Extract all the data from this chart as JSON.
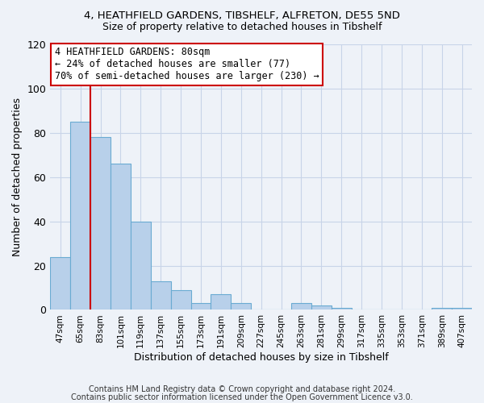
{
  "title1": "4, HEATHFIELD GARDENS, TIBSHELF, ALFRETON, DE55 5ND",
  "title2": "Size of property relative to detached houses in Tibshelf",
  "xlabel": "Distribution of detached houses by size in Tibshelf",
  "ylabel": "Number of detached properties",
  "categories": [
    "47sqm",
    "65sqm",
    "83sqm",
    "101sqm",
    "119sqm",
    "137sqm",
    "155sqm",
    "173sqm",
    "191sqm",
    "209sqm",
    "227sqm",
    "245sqm",
    "263sqm",
    "281sqm",
    "299sqm",
    "317sqm",
    "335sqm",
    "353sqm",
    "371sqm",
    "389sqm",
    "407sqm"
  ],
  "values": [
    24,
    85,
    78,
    66,
    40,
    13,
    9,
    3,
    7,
    3,
    0,
    0,
    3,
    2,
    1,
    0,
    0,
    0,
    0,
    1,
    1
  ],
  "bar_color": "#b8d0ea",
  "bar_edge_color": "#6aabd2",
  "vline_x": 1.5,
  "marker_label": "4 HEATHFIELD GARDENS: 80sqm",
  "annotation_line1": "← 24% of detached houses are smaller (77)",
  "annotation_line2": "70% of semi-detached houses are larger (230) →",
  "vline_color": "#cc0000",
  "annotation_box_color": "#ffffff",
  "annotation_box_edge": "#cc0000",
  "ylim": [
    0,
    120
  ],
  "yticks": [
    0,
    20,
    40,
    60,
    80,
    100,
    120
  ],
  "footer1": "Contains HM Land Registry data © Crown copyright and database right 2024.",
  "footer2": "Contains public sector information licensed under the Open Government Licence v3.0.",
  "bg_color": "#eef2f8",
  "grid_color": "#c8d4e8"
}
